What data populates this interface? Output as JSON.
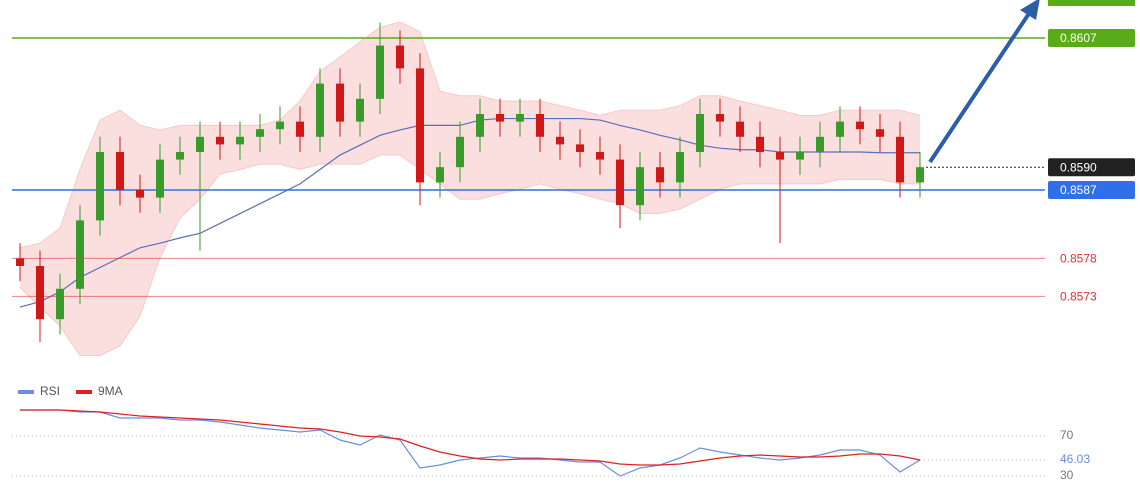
{
  "chart_data": [
    {
      "type": "candlestick",
      "open": [
        0.8578,
        0.8577,
        0.857,
        0.8574,
        0.8583,
        0.8592,
        0.8587,
        0.8586,
        0.8591,
        0.8592,
        0.8594,
        0.8593,
        0.8594,
        0.8595,
        0.8596,
        0.8594,
        0.8601,
        0.8596,
        0.8599,
        0.8606,
        0.8603,
        0.8588,
        0.859,
        0.8594,
        0.8597,
        0.8596,
        0.8597,
        0.8594,
        0.8593,
        0.8592,
        0.8591,
        0.8585,
        0.859,
        0.8588,
        0.8592,
        0.8597,
        0.8596,
        0.8594,
        0.8592,
        0.8591,
        0.8592,
        0.8594,
        0.8596,
        0.8595,
        0.8594,
        0.8588
      ],
      "high": [
        0.858,
        0.8579,
        0.8576,
        0.8585,
        0.8594,
        0.8594,
        0.8589,
        0.8593,
        0.8594,
        0.8596,
        0.8596,
        0.8596,
        0.8597,
        0.8598,
        0.8598,
        0.8603,
        0.8603,
        0.8601,
        0.8609,
        0.8608,
        0.8605,
        0.8592,
        0.8596,
        0.8599,
        0.8599,
        0.8599,
        0.8599,
        0.8596,
        0.8595,
        0.8594,
        0.8593,
        0.8592,
        0.8592,
        0.8594,
        0.8599,
        0.8599,
        0.8598,
        0.8596,
        0.8594,
        0.8594,
        0.8596,
        0.8598,
        0.8598,
        0.8597,
        0.8596,
        0.8592
      ],
      "low": [
        0.8575,
        0.8567,
        0.8568,
        0.8572,
        0.8581,
        0.8585,
        0.8584,
        0.8584,
        0.8589,
        0.8579,
        0.8591,
        0.8591,
        0.8592,
        0.8593,
        0.8592,
        0.8592,
        0.8594,
        0.8594,
        0.8597,
        0.8601,
        0.8585,
        0.8586,
        0.8588,
        0.8592,
        0.8594,
        0.8594,
        0.8592,
        0.8591,
        0.859,
        0.8589,
        0.8582,
        0.8583,
        0.8586,
        0.8586,
        0.859,
        0.8594,
        0.8592,
        0.859,
        0.858,
        0.8589,
        0.859,
        0.8592,
        0.8593,
        0.8592,
        0.8586,
        0.8586
      ],
      "close": [
        0.8577,
        0.857,
        0.8574,
        0.8583,
        0.8592,
        0.8587,
        0.8586,
        0.8591,
        0.8592,
        0.8594,
        0.8593,
        0.8594,
        0.8595,
        0.8596,
        0.8594,
        0.8601,
        0.8596,
        0.8599,
        0.8606,
        0.8603,
        0.8588,
        0.859,
        0.8594,
        0.8597,
        0.8596,
        0.8597,
        0.8594,
        0.8593,
        0.8592,
        0.8591,
        0.8585,
        0.859,
        0.8588,
        0.8592,
        0.8597,
        0.8596,
        0.8594,
        0.8592,
        0.8591,
        0.8592,
        0.8594,
        0.8596,
        0.8595,
        0.8594,
        0.8588,
        0.859
      ],
      "up_color": "#3a9a2a",
      "down_color": "#d01818",
      "bands": {
        "color": "#f8c8c8",
        "upper": [
          0.85794,
          0.858,
          0.8582,
          0.85897,
          0.85962,
          0.85975,
          0.85955,
          0.85949,
          0.85955,
          0.85955,
          0.85955,
          0.85955,
          0.85955,
          0.85962,
          0.85987,
          0.86026,
          0.86045,
          0.86065,
          0.86084,
          0.86091,
          0.86078,
          0.86,
          0.85994,
          0.85994,
          0.85987,
          0.85987,
          0.85987,
          0.85981,
          0.85975,
          0.85968,
          0.85975,
          0.85975,
          0.85975,
          0.85981,
          0.85994,
          0.85994,
          0.85987,
          0.85981,
          0.85975,
          0.85968,
          0.85968,
          0.85975,
          0.85975,
          0.85975,
          0.85975,
          0.85968
        ],
        "lower": [
          0.85742,
          0.85716,
          0.85691,
          0.85652,
          0.85652,
          0.85665,
          0.85704,
          0.85781,
          0.85833,
          0.85858,
          0.85891,
          0.85897,
          0.85904,
          0.85904,
          0.85897,
          0.85904,
          0.85904,
          0.85904,
          0.85916,
          0.85916,
          0.85897,
          0.85878,
          0.85858,
          0.85858,
          0.85865,
          0.85871,
          0.85878,
          0.85871,
          0.85865,
          0.85858,
          0.85852,
          0.85839,
          0.85839,
          0.85845,
          0.85858,
          0.85871,
          0.85878,
          0.85878,
          0.85878,
          0.85878,
          0.85878,
          0.85884,
          0.85884,
          0.85884,
          0.85878,
          0.85878
        ]
      },
      "ma": {
        "color": "#5a6fb8",
        "values": [
          0.85716,
          0.85723,
          0.85736,
          0.85755,
          0.85768,
          0.85781,
          0.85794,
          0.858,
          0.85807,
          0.85813,
          0.85826,
          0.85839,
          0.85852,
          0.85865,
          0.85878,
          0.85897,
          0.85916,
          0.85929,
          0.85942,
          0.85949,
          0.85955,
          0.85955,
          0.85955,
          0.85962,
          0.85964,
          0.85964,
          0.85964,
          0.85964,
          0.85964,
          0.85962,
          0.85955,
          0.85949,
          0.85942,
          0.85936,
          0.85929,
          0.85925,
          0.85923,
          0.85923,
          0.8592,
          0.8592,
          0.8592,
          0.8592,
          0.8592,
          0.85919,
          0.85919,
          0.85919
        ]
      },
      "levels": [
        {
          "value": 0.8607,
          "color": "#5aab1a",
          "label_style": "box",
          "line": "solid"
        },
        {
          "value": 0.859,
          "label": "0.8590",
          "color": "#222222",
          "label_style": "box",
          "line": "dotted"
        },
        {
          "value": 0.8587,
          "color": "#2f6fe8",
          "label_style": "box",
          "line": "solid"
        },
        {
          "value": 0.8578,
          "color": "#e03030",
          "label_style": "plain",
          "line": "thin"
        },
        {
          "value": 0.8573,
          "color": "#e03030",
          "label_style": "plain",
          "line": "thin"
        }
      ],
      "ylim": [
        0.8562,
        0.8612
      ]
    },
    {
      "type": "line",
      "series": [
        {
          "name": "RSI",
          "color": "#6a8ee0",
          "values": [
            96,
            96,
            96,
            94,
            94,
            88,
            88,
            88,
            86,
            86,
            84,
            81,
            78,
            76,
            74,
            76,
            66,
            61,
            71,
            66,
            38,
            41,
            46,
            48,
            50,
            48,
            48,
            46,
            44,
            44,
            30,
            38,
            41,
            48,
            58,
            54,
            51,
            48,
            46,
            48,
            51,
            56,
            56,
            51,
            34,
            46.03
          ]
        },
        {
          "name": "9MA",
          "color": "#e02020",
          "values": [
            96,
            96,
            96,
            95,
            94,
            92,
            90,
            89,
            88,
            87,
            86,
            84,
            82,
            80,
            78,
            77,
            74,
            70,
            69,
            67,
            60,
            54,
            50,
            47,
            46,
            47,
            47,
            47,
            46,
            45,
            42,
            41,
            41,
            42,
            45,
            48,
            50,
            51,
            50,
            49,
            49,
            50,
            52,
            52,
            50,
            46
          ]
        }
      ],
      "ylim": [
        6,
        106
      ],
      "yticks": [
        30,
        70
      ]
    }
  ]
}
